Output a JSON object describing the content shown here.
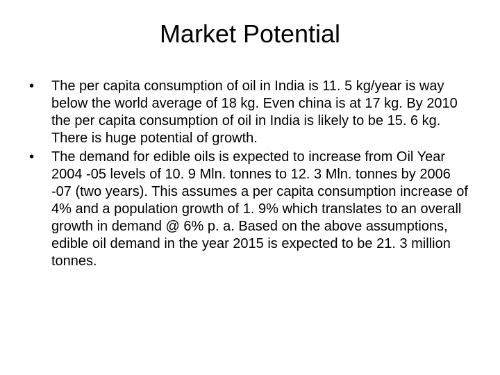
{
  "slide": {
    "title": "Market Potential",
    "bullets": [
      {
        "text": "The per capita consumption of oil in India is 11. 5 kg/year is way below the world average of 18 kg. Even china is at 17 kg. By 2010 the per capita consumption of oil in India is likely to be 15. 6 kg. There is huge potential of growth."
      },
      {
        "text": "The demand for edible oils is expected to increase from Oil Year 2004 -05 levels of 10. 9 Mln. tonnes to 12. 3 Mln. tonnes by 2006 -07 (two years). This assumes a per capita consumption increase of 4% and a population growth of 1. 9% which translates to an overall growth in demand @ 6% p. a. Based on the above assumptions, edible oil demand in the year 2015 is expected to be 21. 3 million tonnes."
      }
    ]
  },
  "style": {
    "background_color": "#ffffff",
    "text_color": "#000000",
    "title_fontsize": 36,
    "body_fontsize": 20,
    "font_family": "Arial",
    "bullet_marker": "•"
  }
}
